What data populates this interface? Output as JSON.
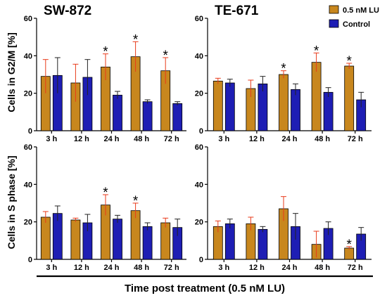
{
  "figure": {
    "xlabel": "Time post treatment (0.5 nM LU)",
    "row_ylabels": [
      "Cells in G2/M [%]",
      "Cells in S phase [%]"
    ],
    "legend": [
      {
        "label": "0.5 nM LU",
        "color": "#c8871e"
      },
      {
        "label": "Control",
        "color": "#1e1eb4"
      }
    ]
  },
  "chart_data": [
    {
      "type": "bar",
      "title": "SW-872",
      "ylabel": "Cells in G2/M [%]",
      "categories": [
        "3 h",
        "12 h",
        "24 h",
        "48 h",
        "72 h"
      ],
      "ylim": [
        0,
        60
      ],
      "yticks": [
        0,
        20,
        40,
        60
      ],
      "series": [
        {
          "name": "0.5 nM LU",
          "values": [
            29,
            25.5,
            34,
            39.5,
            32
          ],
          "errors": [
            9,
            10,
            7,
            8,
            7
          ]
        },
        {
          "name": "Control",
          "values": [
            29.5,
            28.5,
            19,
            15.5,
            14.5
          ],
          "errors": [
            9.5,
            9.5,
            2,
            1,
            1
          ]
        }
      ],
      "annotations": [
        {
          "category": "24 h",
          "text": "*"
        },
        {
          "category": "48 h",
          "text": "*"
        },
        {
          "category": "72 h",
          "text": "*"
        }
      ]
    },
    {
      "type": "bar",
      "title": "TE-671",
      "ylabel": "",
      "categories": [
        "3 h",
        "12 h",
        "24 h",
        "48 h",
        "72 h"
      ],
      "ylim": [
        0,
        60
      ],
      "yticks": [
        0,
        20,
        40,
        60
      ],
      "series": [
        {
          "name": "0.5 nM LU",
          "values": [
            26.5,
            22.5,
            30,
            36.5,
            34.5
          ],
          "errors": [
            1.5,
            4.5,
            2,
            5,
            1.5
          ]
        },
        {
          "name": "Control",
          "values": [
            25.5,
            25,
            22,
            20.5,
            16.5
          ],
          "errors": [
            2,
            4,
            3,
            2.5,
            4
          ]
        }
      ],
      "annotations": [
        {
          "category": "24 h",
          "text": "*"
        },
        {
          "category": "48 h",
          "text": "*"
        },
        {
          "category": "72 h",
          "text": "*"
        }
      ]
    },
    {
      "type": "bar",
      "title": "",
      "ylabel": "Cells in S phase [%]",
      "categories": [
        "3 h",
        "12 h",
        "24 h",
        "48 h",
        "72 h"
      ],
      "ylim": [
        0,
        60
      ],
      "yticks": [
        0,
        20,
        40,
        60
      ],
      "series": [
        {
          "name": "0.5 nM LU",
          "values": [
            22.5,
            21,
            29,
            26,
            19.5
          ],
          "errors": [
            3,
            1,
            5.5,
            4,
            2.5
          ]
        },
        {
          "name": "Control",
          "values": [
            24.5,
            19.5,
            21.5,
            17.5,
            17
          ],
          "errors": [
            4,
            4.5,
            2,
            2,
            4.5
          ]
        }
      ],
      "annotations": [
        {
          "category": "24 h",
          "text": "*"
        },
        {
          "category": "48 h",
          "text": "*"
        }
      ]
    },
    {
      "type": "bar",
      "title": "",
      "ylabel": "",
      "categories": [
        "3 h",
        "12 h",
        "24 h",
        "48 h",
        "72 h"
      ],
      "ylim": [
        0,
        60
      ],
      "yticks": [
        0,
        20,
        40,
        60
      ],
      "series": [
        {
          "name": "0.5 nM LU",
          "values": [
            17.5,
            19,
            27,
            8,
            6
          ],
          "errors": [
            3,
            3.5,
            6.5,
            7,
            0.8
          ]
        },
        {
          "name": "Control",
          "values": [
            19,
            16,
            17.5,
            16.5,
            13.5
          ],
          "errors": [
            2.5,
            1.5,
            7,
            3.5,
            3.5
          ]
        }
      ],
      "annotations": [
        {
          "category": "72 h",
          "text": "*"
        }
      ]
    }
  ]
}
